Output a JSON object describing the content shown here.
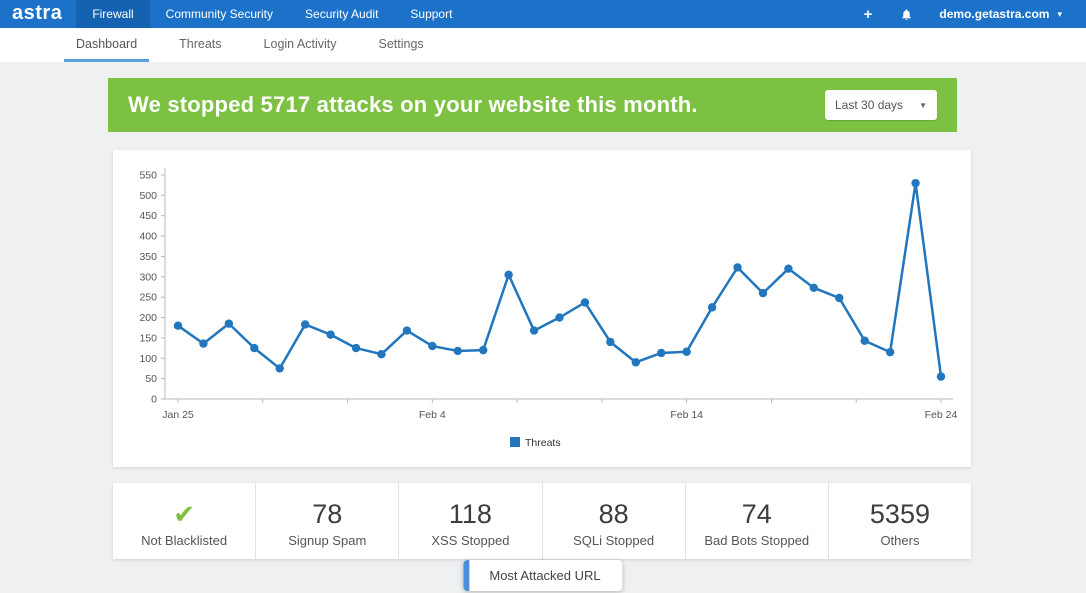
{
  "colors": {
    "navbar_bg": "#1b72c8",
    "navbar_active_bg": "#1563b0",
    "tab_underline": "#5a9fdb",
    "banner_bg": "#7cc142",
    "line_color": "#2176bd",
    "page_bg": "#eef0f2",
    "check_green": "#7cc142"
  },
  "topnav": {
    "logo": "astra",
    "items": [
      "Firewall",
      "Community Security",
      "Security Audit",
      "Support"
    ],
    "plus": "+",
    "account": "demo.getastra.com",
    "caret": "▾"
  },
  "subnav": {
    "tabs": [
      "Dashboard",
      "Threats",
      "Login Activity",
      "Settings"
    ]
  },
  "banner": {
    "message": "We stopped 5717 attacks on your website this month.",
    "attacks_count": "5717",
    "range": "Last 30 days",
    "caret": "▾"
  },
  "chart_data": {
    "type": "line",
    "title": "",
    "xlabel": "",
    "ylabel": "",
    "ylim": [
      0,
      550
    ],
    "y_tick_step": 50,
    "grid": false,
    "legend_position": "bottom",
    "x_tick_labels": [
      {
        "index": 0,
        "label": "Jan 25"
      },
      {
        "index": 10,
        "label": "Feb 4"
      },
      {
        "index": 20,
        "label": "Feb 14"
      },
      {
        "index": 30,
        "label": "Feb 24"
      }
    ],
    "series": [
      {
        "name": "Threats",
        "color": "#2176bd",
        "values": [
          180,
          136,
          185,
          125,
          75,
          183,
          158,
          125,
          110,
          168,
          130,
          118,
          120,
          305,
          168,
          200,
          237,
          140,
          90,
          113,
          116,
          225,
          323,
          260,
          320,
          273,
          248,
          143,
          115,
          530,
          55
        ]
      }
    ]
  },
  "stats": {
    "items": [
      {
        "icon": "check",
        "glyph": "✔",
        "label": "Not Blacklisted"
      },
      {
        "value": "78",
        "label": "Signup Spam"
      },
      {
        "value": "118",
        "label": "XSS Stopped"
      },
      {
        "value": "88",
        "label": "SQLi Stopped"
      },
      {
        "value": "74",
        "label": "Bad Bots Stopped"
      },
      {
        "value": "5359",
        "label": "Others"
      }
    ]
  },
  "footer_button": {
    "label": "Most Attacked URL"
  }
}
